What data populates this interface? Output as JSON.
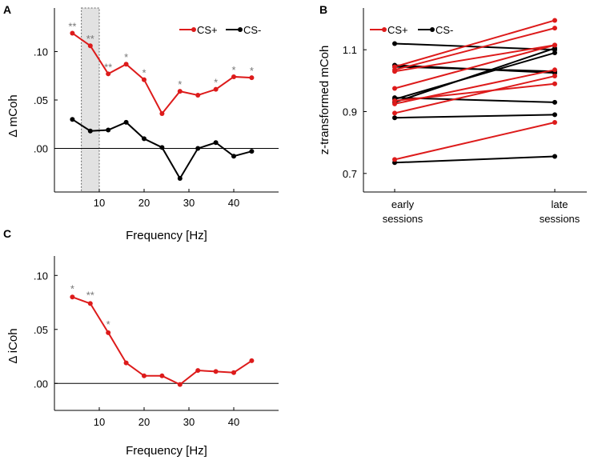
{
  "colors": {
    "cs_plus": "#dd1b1b",
    "cs_minus": "#000000",
    "star": "#777777",
    "highlight": "#e2e2e2"
  },
  "chart_data": [
    {
      "panel": "A",
      "type": "line",
      "title": "",
      "xlabel": "Frequency [Hz]",
      "ylabel": "Δ mCoh",
      "xlim": [
        0,
        50
      ],
      "ylim": [
        -0.045,
        0.145
      ],
      "xticks": [
        10,
        20,
        30,
        40
      ],
      "yticks": [
        0,
        0.05,
        0.1
      ],
      "ytick_labels": [
        ".00",
        ".05",
        ".10"
      ],
      "zero_line": true,
      "highlight_band": [
        6,
        10
      ],
      "legend_position": "top-right",
      "x": [
        4,
        8,
        12,
        16,
        20,
        24,
        28,
        32,
        36,
        40,
        44
      ],
      "series": [
        {
          "name": "CS+",
          "color": "#dd1b1b",
          "values": [
            0.119,
            0.106,
            0.077,
            0.087,
            0.071,
            0.036,
            0.059,
            0.055,
            0.061,
            0.074,
            0.073
          ]
        },
        {
          "name": "CS-",
          "color": "#000000",
          "values": [
            0.03,
            0.018,
            0.019,
            0.027,
            0.01,
            0.001,
            -0.031,
            0.0,
            0.006,
            -0.008,
            -0.003
          ]
        }
      ],
      "significance": [
        "**",
        "**",
        "**",
        "*",
        "*",
        "",
        "*",
        "",
        "*",
        "*",
        "*"
      ]
    },
    {
      "panel": "B",
      "type": "line",
      "title": "",
      "xlabel": "",
      "ylabel": "z-transformed mCoh",
      "ylim": [
        0.64,
        1.235
      ],
      "yticks": [
        0.7,
        0.9,
        1.1
      ],
      "ytick_labels": [
        "0.7",
        "0.9",
        "1.1"
      ],
      "categories": [
        "early sessions",
        "late sessions"
      ],
      "category_lines": [
        [
          "early",
          "sessions"
        ],
        [
          "late",
          "sessions"
        ]
      ],
      "legend_position": "top-left",
      "series": [
        {
          "name": "CS+",
          "color": "#dd1b1b",
          "pairs": [
            [
              0.745,
              0.865
            ],
            [
              0.895,
              1.015
            ],
            [
              0.935,
              0.99
            ],
            [
              0.975,
              1.115
            ],
            [
              1.03,
              1.115
            ],
            [
              1.035,
              1.17
            ],
            [
              1.045,
              1.195
            ],
            [
              0.925,
              1.035
            ]
          ]
        },
        {
          "name": "CS-",
          "color": "#000000",
          "pairs": [
            [
              0.735,
              0.755
            ],
            [
              0.88,
              0.89
            ],
            [
              0.945,
              0.93
            ],
            [
              0.94,
              1.09
            ],
            [
              1.045,
              1.03
            ],
            [
              1.05,
              1.025
            ],
            [
              1.12,
              1.1
            ],
            [
              0.93,
              1.105
            ]
          ]
        }
      ]
    },
    {
      "panel": "C",
      "type": "line",
      "title": "",
      "xlabel": "Frequency [Hz]",
      "ylabel": "Δ iCoh",
      "xlim": [
        0,
        50
      ],
      "ylim": [
        -0.025,
        0.118
      ],
      "xticks": [
        10,
        20,
        30,
        40
      ],
      "yticks": [
        0,
        0.05,
        0.1
      ],
      "ytick_labels": [
        ".00",
        ".05",
        ".10"
      ],
      "zero_line": true,
      "x": [
        4,
        8,
        12,
        16,
        20,
        24,
        28,
        32,
        36,
        40,
        44
      ],
      "series": [
        {
          "name": "CS+",
          "color": "#dd1b1b",
          "values": [
            0.08,
            0.074,
            0.047,
            0.019,
            0.007,
            0.007,
            -0.001,
            0.012,
            0.011,
            0.01,
            0.021
          ]
        }
      ],
      "significance": [
        "*",
        "**",
        "*",
        "",
        "",
        "",
        "",
        "",
        "",
        "",
        ""
      ]
    }
  ]
}
